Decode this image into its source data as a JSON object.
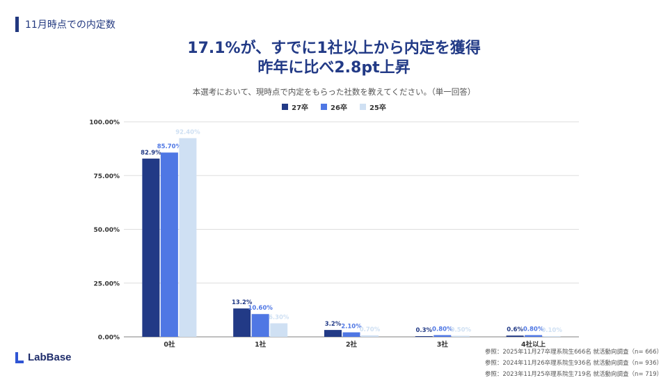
{
  "section_label": "11月時点での内定数",
  "headline_line1": "17.1%が、すでに1社以上から内定を獲得",
  "headline_line2": "昨年に比べ2.8pt上昇",
  "question": "本選考において、現時点で内定をもらった社数を教えてください。（単一回答）",
  "colors": {
    "s27": "#223a86",
    "s26": "#4f77e4",
    "s25": "#cfe0f3",
    "accent": "#22387f"
  },
  "logo_text": "LabBase",
  "references": [
    "参照：2025年11月27卒理系院生666名 就活動向調査（n= 666）",
    "参照：2024年11月26卒理系院生936名 就活動向調査（n= 936）",
    "参照：2023年11月25卒理系院生719名 就活動向調査（n= 719）"
  ],
  "chart_data": {
    "type": "bar",
    "categories": [
      "0社",
      "1社",
      "2社",
      "3社",
      "4社以上"
    ],
    "series": [
      {
        "name": "27卒",
        "values": [
          82.9,
          13.2,
          3.2,
          0.3,
          0.6
        ],
        "labels": [
          "82.9%",
          "13.2%",
          "3.2%",
          "0.3%",
          "0.6%"
        ]
      },
      {
        "name": "26卒",
        "values": [
          85.7,
          10.6,
          2.1,
          0.8,
          0.8
        ],
        "labels": [
          "85.70%",
          "10.60%",
          "2.10%",
          "0.80%",
          "0.80%"
        ]
      },
      {
        "name": "25卒",
        "values": [
          92.4,
          6.3,
          0.7,
          0.5,
          0.1
        ],
        "labels": [
          "92.40%",
          "6.30%",
          "0.70%",
          "0.50%",
          "0.10%"
        ]
      }
    ],
    "y_ticks": [
      "0.00%",
      "25.00%",
      "50.00%",
      "75.00%",
      "100.00%"
    ],
    "ylim": [
      0,
      100
    ],
    "grid": true,
    "legend": "top-center"
  }
}
